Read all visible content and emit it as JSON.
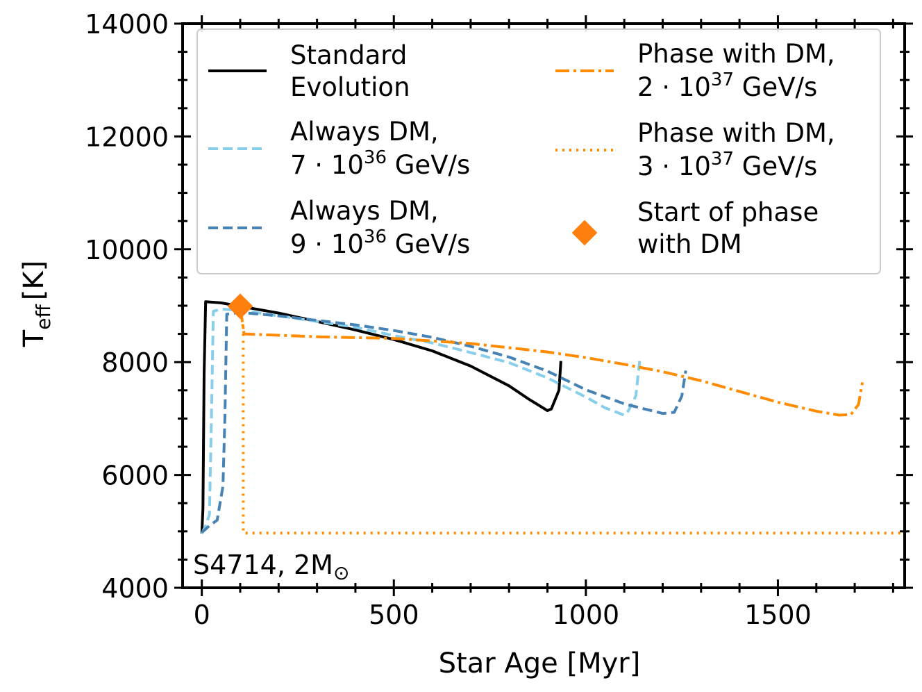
{
  "chart_data": {
    "type": "line",
    "xlabel": "Star Age [Myr]",
    "ylabel": "T",
    "ylabel_sub": "eff",
    "ylabel_unit": "[K]",
    "xlim": [
      -50,
      1830
    ],
    "ylim": [
      4000,
      14000
    ],
    "xticks": [
      0,
      500,
      1000,
      1500
    ],
    "yticks": [
      4000,
      6000,
      8000,
      10000,
      12000,
      14000
    ],
    "xtick_labels": [
      "0",
      "500",
      "1000",
      "1500"
    ],
    "ytick_labels": [
      "4000",
      "6000",
      "8000",
      "10000",
      "12000",
      "14000"
    ],
    "grid": false,
    "legend_position": "top",
    "annotation": {
      "text": "S4714, 2M",
      "symbol": "⊙"
    },
    "series": [
      {
        "line1": "Standard",
        "line2": "Evolution",
        "color": "#000000",
        "dash": "solid",
        "points": [
          [
            0,
            4960
          ],
          [
            3,
            5400
          ],
          [
            6,
            7800
          ],
          [
            10,
            9070
          ],
          [
            50,
            9050
          ],
          [
            100,
            8990
          ],
          [
            200,
            8870
          ],
          [
            300,
            8720
          ],
          [
            400,
            8570
          ],
          [
            500,
            8400
          ],
          [
            600,
            8200
          ],
          [
            700,
            7930
          ],
          [
            800,
            7580
          ],
          [
            850,
            7350
          ],
          [
            900,
            7140
          ],
          [
            910,
            7170
          ],
          [
            930,
            7500
          ],
          [
            935,
            8020
          ]
        ]
      },
      {
        "line1": "Always DM,",
        "line2_base": "7 · 10",
        "line2_exp": "36",
        "line2_unit": " GeV/s",
        "color": "#87ceeb",
        "dash": "dashed",
        "points": [
          [
            0,
            4960
          ],
          [
            10,
            5100
          ],
          [
            20,
            5300
          ],
          [
            25,
            7000
          ],
          [
            30,
            8900
          ],
          [
            50,
            8940
          ],
          [
            100,
            8920
          ],
          [
            200,
            8820
          ],
          [
            300,
            8720
          ],
          [
            400,
            8620
          ],
          [
            500,
            8470
          ],
          [
            600,
            8340
          ],
          [
            700,
            8170
          ],
          [
            800,
            7990
          ],
          [
            900,
            7720
          ],
          [
            1000,
            7380
          ],
          [
            1050,
            7190
          ],
          [
            1100,
            7060
          ],
          [
            1110,
            7130
          ],
          [
            1130,
            7400
          ],
          [
            1140,
            8020
          ]
        ]
      },
      {
        "line1": "Always DM,",
        "line2_base": "9 · 10",
        "line2_exp": "36",
        "line2_unit": " GeV/s",
        "color": "#4682b4",
        "dash": "dashed",
        "points": [
          [
            0,
            4980
          ],
          [
            20,
            5100
          ],
          [
            40,
            5200
          ],
          [
            55,
            5800
          ],
          [
            60,
            7000
          ],
          [
            65,
            8850
          ],
          [
            100,
            8880
          ],
          [
            200,
            8820
          ],
          [
            300,
            8740
          ],
          [
            400,
            8660
          ],
          [
            500,
            8560
          ],
          [
            600,
            8440
          ],
          [
            700,
            8280
          ],
          [
            800,
            8090
          ],
          [
            900,
            7840
          ],
          [
            1000,
            7510
          ],
          [
            1100,
            7260
          ],
          [
            1200,
            7090
          ],
          [
            1230,
            7110
          ],
          [
            1250,
            7400
          ],
          [
            1260,
            7850
          ]
        ]
      },
      {
        "line1": "Phase with DM,",
        "line2_base": "2 · 10",
        "line2_exp": "37",
        "line2_unit": " GeV/s",
        "color": "#ff8c00",
        "dash": "dashdot",
        "points": [
          [
            100,
            8990
          ],
          [
            110,
            8500
          ],
          [
            300,
            8450
          ],
          [
            500,
            8420
          ],
          [
            700,
            8330
          ],
          [
            900,
            8180
          ],
          [
            1000,
            8080
          ],
          [
            1100,
            7960
          ],
          [
            1200,
            7830
          ],
          [
            1300,
            7670
          ],
          [
            1400,
            7480
          ],
          [
            1500,
            7290
          ],
          [
            1600,
            7130
          ],
          [
            1660,
            7060
          ],
          [
            1690,
            7070
          ],
          [
            1710,
            7250
          ],
          [
            1720,
            7640
          ]
        ]
      },
      {
        "line1": "Phase with DM,",
        "line2_base": "3 · 10",
        "line2_exp": "37",
        "line2_unit": " GeV/s",
        "color": "#ff8c00",
        "dash": "dotted",
        "points": [
          [
            100,
            8990
          ],
          [
            108,
            8600
          ],
          [
            108,
            4970
          ],
          [
            1830,
            4970
          ]
        ]
      }
    ],
    "marker": {
      "line1": "Start of phase",
      "line2": "with DM",
      "color": "#ff7f0e",
      "x": 100,
      "y": 8990
    }
  }
}
